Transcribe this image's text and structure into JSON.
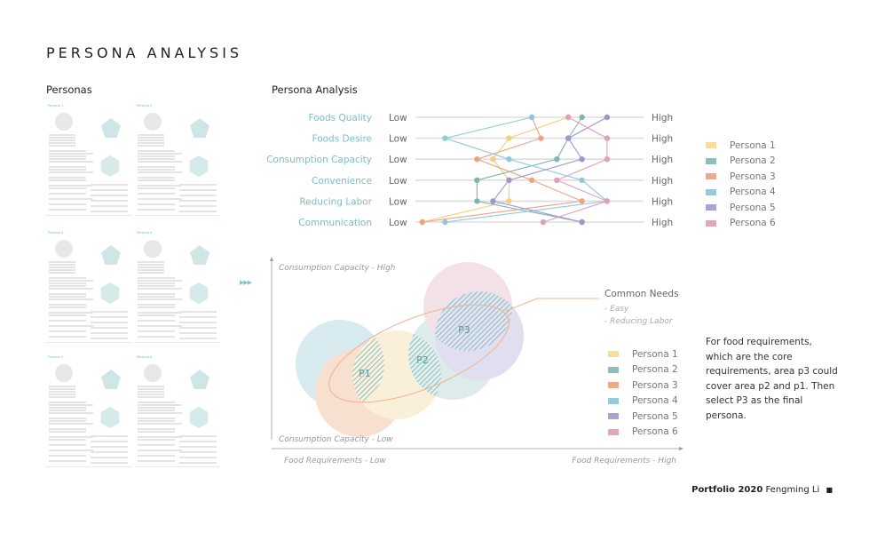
{
  "title": "PERSONA ANALYSIS",
  "personas_heading": "Personas",
  "analysis_heading": "Persona Analysis",
  "persona_cards": [
    "Persona 1",
    "Persona 2",
    "Persona 3",
    "Persona 4",
    "Persona 5",
    "Persona 6"
  ],
  "colors": {
    "p1": "#f8dc9a",
    "p2": "#8fbfbd",
    "p3": "#eeaa88",
    "p4": "#92cbdc",
    "p5": "#a7a3d2",
    "p6": "#e3a7bd"
  },
  "chart_data": {
    "type": "line",
    "title": "Persona Analysis",
    "dimensions": [
      "Foods Quality",
      "Foods Desire",
      "Consumption Capacity",
      "Convenience",
      "Reducing Labor",
      "Communication"
    ],
    "low_label": "Low",
    "high_label": "High",
    "range": [
      0,
      100
    ],
    "series": [
      {
        "name": "Persona 1",
        "color": "#f5cf7a",
        "values": [
          67,
          41,
          34,
          41,
          41,
          3
        ]
      },
      {
        "name": "Persona 2",
        "color": "#7db5b2",
        "values": [
          73,
          67,
          62,
          27,
          27,
          73
        ]
      },
      {
        "name": "Persona 3",
        "color": "#eea27f",
        "values": [
          51,
          55,
          27,
          51,
          73,
          3
        ]
      },
      {
        "name": "Persona 4",
        "color": "#8ccbdf",
        "values": [
          51,
          13,
          41,
          73,
          84,
          13
        ]
      },
      {
        "name": "Persona 5",
        "color": "#9c97cf",
        "values": [
          84,
          67,
          73,
          41,
          34,
          73
        ]
      },
      {
        "name": "Persona 6",
        "color": "#e0a0b8",
        "values": [
          67,
          84,
          84,
          62,
          84,
          56
        ]
      }
    ]
  },
  "legend": [
    "Persona 1",
    "Persona 2",
    "Persona 3",
    "Persona 4",
    "Persona 5",
    "Persona 6"
  ],
  "diagram": {
    "y_high": "Consumption Capacity - High",
    "y_low": "Consumption Capacity - Low",
    "x_low": "Food Requirements - Low",
    "x_high": "Food Requirements - High",
    "areas": [
      "P1",
      "P2",
      "P3"
    ],
    "common_needs_title": "Common Needs",
    "common_needs": [
      "- Easy",
      "- Reducing Labor"
    ]
  },
  "note": "For food requirements, which are the core requirements, area p3 could cover area p2 and p1. Then select P3 as the final persona.",
  "footer": {
    "bold": "Portfolio 2020",
    "name": "Fengming Li",
    "mark": "■"
  }
}
